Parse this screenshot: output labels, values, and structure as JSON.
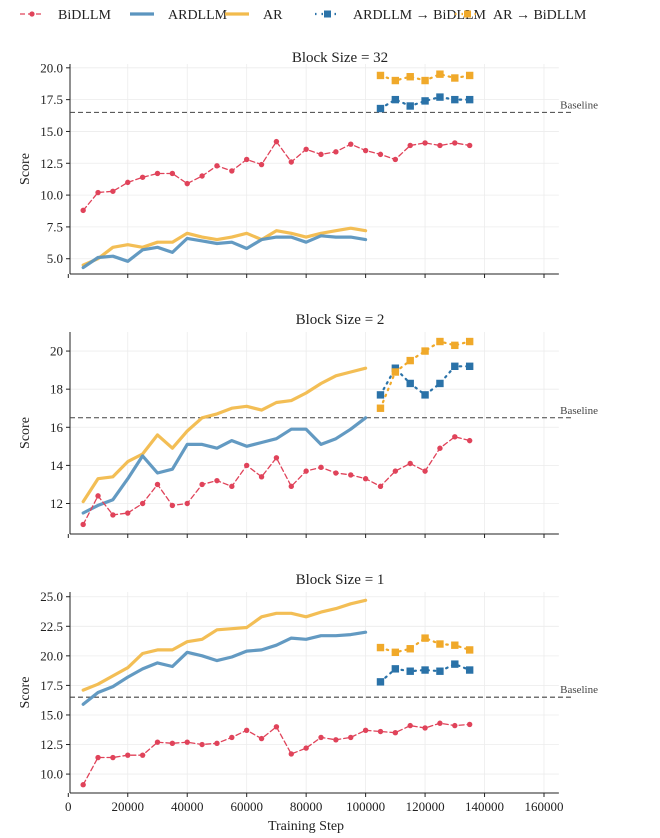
{
  "legend": [
    {
      "key": "BiDLLM",
      "label": "BiDLLM"
    },
    {
      "key": "ARDLLM",
      "label": "ARDLLM"
    },
    {
      "key": "AR",
      "label": "AR"
    },
    {
      "key": "ARDLLM_to_BiDLLM",
      "label": "ARDLLM → BiDLLM"
    },
    {
      "key": "AR_to_BiDLLM",
      "label": "AR → BiDLLM"
    }
  ],
  "colors": {
    "BiDLLM": "#e0435a",
    "ARDLLM": "#5b95bf",
    "AR": "#f2bb4c",
    "ARDLLM_to_BiDLLM": "#2a72a8",
    "AR_to_BiDLLM": "#f0a92a",
    "baseline": "#444444"
  },
  "chart_data": [
    {
      "type": "line",
      "title": "Block Size = 32",
      "xlabel": "",
      "ylabel": "Score",
      "xlim": [
        0,
        165000
      ],
      "ylim": [
        3.8,
        20.3
      ],
      "yticks": [
        "5.0",
        "7.5",
        "10.0",
        "12.5",
        "15.0",
        "17.5",
        "20.0"
      ],
      "ytick_values": [
        5.0,
        7.5,
        10.0,
        12.5,
        15.0,
        17.5,
        20.0
      ],
      "xticks": [
        0,
        20000,
        40000,
        60000,
        80000,
        100000,
        120000,
        140000,
        160000
      ],
      "show_xtick_labels": false,
      "grid": true,
      "baseline": {
        "value": 16.5,
        "label": "Baseline"
      },
      "series": [
        {
          "name": "BiDLLM",
          "x_start": 5000,
          "x_step": 5000,
          "values": [
            8.8,
            10.2,
            10.3,
            11.0,
            11.4,
            11.7,
            11.7,
            10.9,
            11.5,
            12.3,
            11.9,
            12.8,
            12.4,
            14.2,
            12.6,
            13.6,
            13.2,
            13.4,
            14.0,
            13.5,
            13.2,
            12.8,
            13.9,
            14.1,
            13.9,
            14.1,
            13.9
          ]
        },
        {
          "name": "ARDLLM",
          "x_start": 5000,
          "x_step": 5000,
          "values": [
            4.3,
            5.1,
            5.2,
            4.8,
            5.7,
            5.9,
            5.5,
            6.6,
            6.4,
            6.2,
            6.3,
            5.8,
            6.5,
            6.7,
            6.7,
            6.3,
            6.8,
            6.7,
            6.7,
            6.5
          ]
        },
        {
          "name": "AR",
          "x_start": 5000,
          "x_step": 5000,
          "values": [
            4.5,
            5.0,
            5.9,
            6.1,
            5.9,
            6.3,
            6.3,
            7.0,
            6.7,
            6.5,
            6.7,
            7.0,
            6.5,
            7.2,
            7.0,
            6.7,
            7.0,
            7.2,
            7.4,
            7.2
          ]
        },
        {
          "name": "ARDLLM → BiDLLM",
          "x_start": 105000,
          "x_step": 5000,
          "values": [
            16.8,
            17.5,
            17.0,
            17.4,
            17.7,
            17.5,
            17.5
          ]
        },
        {
          "name": "AR → BiDLLM",
          "x_start": 105000,
          "x_step": 5000,
          "values": [
            19.4,
            19.0,
            19.3,
            19.0,
            19.5,
            19.2,
            19.4
          ]
        }
      ]
    },
    {
      "type": "line",
      "title": "Block Size = 2",
      "xlabel": "",
      "ylabel": "Score",
      "xlim": [
        0,
        165000
      ],
      "ylim": [
        10.4,
        21.0
      ],
      "yticks": [
        "12",
        "14",
        "16",
        "18",
        "20"
      ],
      "ytick_values": [
        12,
        14,
        16,
        18,
        20
      ],
      "xticks": [
        0,
        20000,
        40000,
        60000,
        80000,
        100000,
        120000,
        140000,
        160000
      ],
      "show_xtick_labels": false,
      "grid": true,
      "baseline": {
        "value": 16.5,
        "label": "Baseline"
      },
      "series": [
        {
          "name": "BiDLLM",
          "x_start": 5000,
          "x_step": 5000,
          "values": [
            10.9,
            12.4,
            11.4,
            11.5,
            12.0,
            13.0,
            11.9,
            12.0,
            13.0,
            13.2,
            12.9,
            14.0,
            13.4,
            14.4,
            12.9,
            13.7,
            13.9,
            13.6,
            13.5,
            13.3,
            12.9,
            13.7,
            14.1,
            13.7,
            14.9,
            15.5,
            15.3
          ]
        },
        {
          "name": "ARDLLM",
          "x_start": 5000,
          "x_step": 5000,
          "values": [
            11.5,
            11.9,
            12.2,
            13.3,
            14.5,
            13.6,
            13.8,
            15.1,
            15.1,
            14.9,
            15.3,
            15.0,
            15.2,
            15.4,
            15.9,
            15.9,
            15.1,
            15.4,
            15.9,
            16.5
          ]
        },
        {
          "name": "AR",
          "x_start": 5000,
          "x_step": 5000,
          "values": [
            12.1,
            13.3,
            13.4,
            14.2,
            14.6,
            15.6,
            14.9,
            15.8,
            16.5,
            16.7,
            17.0,
            17.1,
            16.9,
            17.3,
            17.4,
            17.8,
            18.3,
            18.7,
            18.9,
            19.1
          ]
        },
        {
          "name": "ARDLLM → BiDLLM",
          "x_start": 105000,
          "x_step": 5000,
          "values": [
            17.7,
            19.1,
            18.3,
            17.7,
            18.3,
            19.2,
            19.2
          ]
        },
        {
          "name": "AR → BiDLLM",
          "x_start": 105000,
          "x_step": 5000,
          "values": [
            17.0,
            18.9,
            19.5,
            20.0,
            20.5,
            20.3,
            20.5
          ]
        }
      ]
    },
    {
      "type": "line",
      "title": "Block Size = 1",
      "xlabel": "Training Step",
      "ylabel": "Score",
      "xlim": [
        0,
        165000
      ],
      "ylim": [
        8.4,
        25.4
      ],
      "yticks": [
        "10.0",
        "12.5",
        "15.0",
        "17.5",
        "20.0",
        "22.5",
        "25.0"
      ],
      "ytick_values": [
        10.0,
        12.5,
        15.0,
        17.5,
        20.0,
        22.5,
        25.0
      ],
      "xticks": [
        0,
        20000,
        40000,
        60000,
        80000,
        100000,
        120000,
        140000,
        160000
      ],
      "xtick_labels": [
        "0",
        "20000",
        "40000",
        "60000",
        "80000",
        "100000",
        "120000",
        "140000",
        "160000"
      ],
      "show_xtick_labels": true,
      "grid": true,
      "baseline": {
        "value": 16.5,
        "label": "Baseline"
      },
      "series": [
        {
          "name": "BiDLLM",
          "x_start": 5000,
          "x_step": 5000,
          "values": [
            9.1,
            11.4,
            11.4,
            11.6,
            11.6,
            12.7,
            12.6,
            12.7,
            12.5,
            12.6,
            13.1,
            13.7,
            13.0,
            14.0,
            11.7,
            12.2,
            13.1,
            12.9,
            13.1,
            13.7,
            13.6,
            13.5,
            14.1,
            13.9,
            14.3,
            14.1,
            14.2
          ]
        },
        {
          "name": "ARDLLM",
          "x_start": 5000,
          "x_step": 5000,
          "values": [
            15.9,
            16.9,
            17.4,
            18.2,
            18.9,
            19.4,
            19.1,
            20.3,
            20.0,
            19.6,
            19.9,
            20.4,
            20.5,
            20.9,
            21.5,
            21.4,
            21.7,
            21.7,
            21.8,
            22.0
          ]
        },
        {
          "name": "AR",
          "x_start": 5000,
          "x_step": 5000,
          "values": [
            17.1,
            17.6,
            18.3,
            19.0,
            20.2,
            20.5,
            20.5,
            21.2,
            21.4,
            22.2,
            22.3,
            22.4,
            23.3,
            23.6,
            23.6,
            23.3,
            23.7,
            24.0,
            24.4,
            24.7
          ]
        },
        {
          "name": "ARDLLM → BiDLLM",
          "x_start": 105000,
          "x_step": 5000,
          "values": [
            17.8,
            18.9,
            18.7,
            18.8,
            18.7,
            19.3,
            18.8
          ]
        },
        {
          "name": "AR → BiDLLM",
          "x_start": 105000,
          "x_step": 5000,
          "values": [
            20.7,
            20.3,
            20.6,
            21.5,
            21.0,
            20.9,
            20.5
          ]
        }
      ]
    }
  ]
}
